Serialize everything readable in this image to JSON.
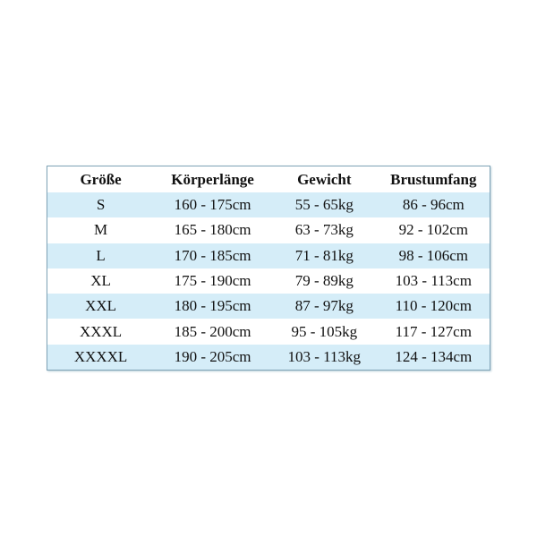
{
  "table": {
    "headers": [
      "Größe",
      "Körperlänge",
      "Gewicht",
      "Brustumfang"
    ],
    "rows": [
      [
        "S",
        "160 - 175cm",
        "55 - 65kg",
        "86 - 96cm"
      ],
      [
        "M",
        "165 - 180cm",
        "63 - 73kg",
        "92 - 102cm"
      ],
      [
        "L",
        "170 - 185cm",
        "71 - 81kg",
        "98 - 106cm"
      ],
      [
        "XL",
        "175 - 190cm",
        "79 - 89kg",
        "103 - 113cm"
      ],
      [
        "XXL",
        "180 - 195cm",
        "87 - 97kg",
        "110 - 120cm"
      ],
      [
        "XXXL",
        "185 - 200cm",
        "95 - 105kg",
        "117 - 127cm"
      ],
      [
        "XXXXL",
        "190 - 205cm",
        "103 - 113kg",
        "124 - 134cm"
      ]
    ],
    "colors": {
      "stripe": "#d5edf8",
      "border": "#7fa3b6"
    }
  }
}
